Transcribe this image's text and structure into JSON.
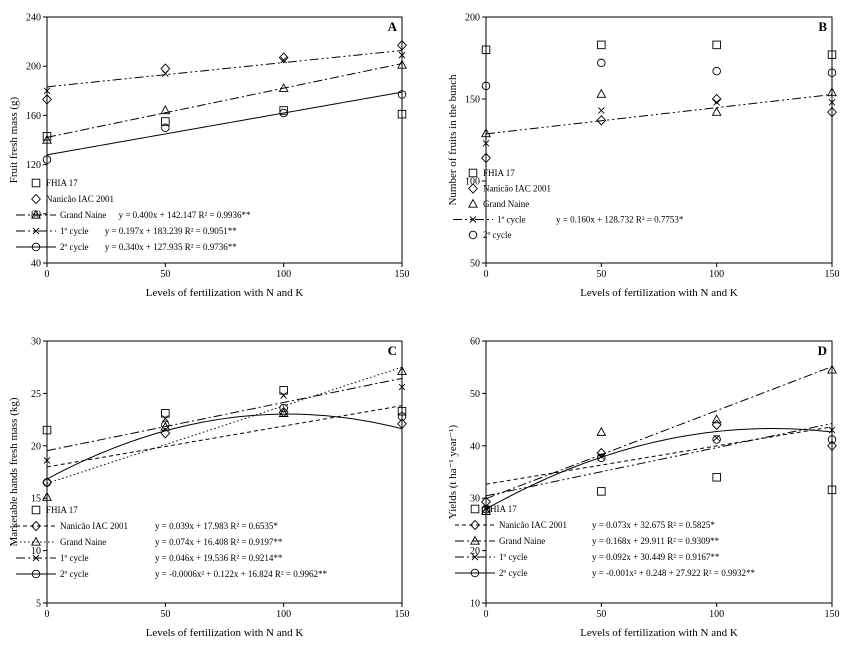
{
  "chart_data": [
    {
      "panel": "A",
      "type": "scatter",
      "xlabel": "Levels of fertilization with N and K",
      "ylabel": "Fruit fresh mass  (g)",
      "xlim": [
        0,
        150
      ],
      "ylim": [
        40,
        240
      ],
      "xticks": [
        0,
        50,
        100,
        150
      ],
      "yticks": [
        40,
        80,
        120,
        160,
        200,
        240
      ],
      "series": [
        {
          "name": "FHIA 17",
          "marker": "square",
          "x": [
            0,
            50,
            100,
            150
          ],
          "y": [
            143,
            155,
            164,
            161
          ]
        },
        {
          "name": "Nanicão IAC 2001",
          "marker": "diamond",
          "x": [
            0,
            50,
            100,
            150
          ],
          "y": [
            173,
            198,
            207,
            217
          ]
        },
        {
          "name": "Grand Naine",
          "marker": "triangle",
          "x": [
            0,
            50,
            100,
            150
          ],
          "y": [
            140,
            164,
            182,
            201
          ],
          "equation": "y = 0.400x + 142.147   R² = 0.9936**",
          "fit": {
            "a": 0.4,
            "b": 142.147
          },
          "line": "dashdot"
        },
        {
          "name": "1º cycle",
          "marker": "x",
          "x": [
            0,
            50,
            100,
            150
          ],
          "y": [
            180,
            194,
            205,
            209
          ],
          "equation": "y = 0.197x + 183.239   R² = 0.9051**",
          "fit": {
            "a": 0.197,
            "b": 183.239
          },
          "line": "dashdotdot"
        },
        {
          "name": "2º cycle",
          "marker": "circle",
          "x": [
            0,
            50,
            100,
            150
          ],
          "y": [
            124,
            150,
            162,
            177
          ],
          "equation": "y = 0.340x + 127.935   R² = 0.9736**",
          "fit": {
            "a": 0.34,
            "b": 127.935
          },
          "line": "solid"
        }
      ]
    },
    {
      "panel": "B",
      "type": "scatter",
      "xlabel": "Levels of fertilization with N and K",
      "ylabel": "Number of fruits in the bunch",
      "xlim": [
        0,
        150
      ],
      "ylim": [
        50,
        200
      ],
      "xticks": [
        0,
        50,
        100,
        150
      ],
      "yticks": [
        50,
        100,
        150,
        200
      ],
      "series": [
        {
          "name": "FHIA 17",
          "marker": "square",
          "x": [
            0,
            50,
            100,
            150
          ],
          "y": [
            180,
            183,
            183,
            177
          ]
        },
        {
          "name": "Nanicão IAC 2001",
          "marker": "diamond",
          "x": [
            0,
            50,
            100,
            150
          ],
          "y": [
            114,
            137,
            150,
            142
          ]
        },
        {
          "name": "Grand Naine",
          "marker": "triangle",
          "x": [
            0,
            50,
            100,
            150
          ],
          "y": [
            129,
            153,
            142,
            154
          ]
        },
        {
          "name": "1º cycle",
          "marker": "x",
          "x": [
            0,
            50,
            100,
            150
          ],
          "y": [
            123,
            143,
            148,
            148
          ],
          "equation": "y = 0.160x + 128.732   R² = 0.7753*",
          "fit": {
            "a": 0.16,
            "b": 128.732
          },
          "line": "dashdotdot"
        },
        {
          "name": "2º cycle",
          "marker": "circle",
          "x": [
            0,
            50,
            100,
            150
          ],
          "y": [
            158,
            172,
            167,
            166
          ]
        }
      ]
    },
    {
      "panel": "C",
      "type": "scatter",
      "xlabel": "Levels of fertilization with N and K",
      "ylabel": "Marketable hands fresh mass (kg)",
      "xlim": [
        0,
        150
      ],
      "ylim": [
        5,
        30
      ],
      "xticks": [
        0,
        50,
        100,
        150
      ],
      "yticks": [
        5,
        10,
        15,
        20,
        25,
        30
      ],
      "series": [
        {
          "name": "FHIA 17",
          "marker": "square",
          "x": [
            0,
            50,
            100,
            150
          ],
          "y": [
            21.5,
            23.1,
            25.3,
            23.3
          ]
        },
        {
          "name": "Nanicão IAC 2001",
          "marker": "diamond",
          "x": [
            0,
            50,
            100,
            150
          ],
          "y": [
            16.5,
            21.2,
            23.2,
            22.1
          ],
          "equation": "y = 0.039x + 17.983   R² = 0.6535*",
          "fit": {
            "a": 0.039,
            "b": 17.983
          },
          "line": "dashed"
        },
        {
          "name": "Grand Naine",
          "marker": "triangle",
          "x": [
            0,
            50,
            100,
            150
          ],
          "y": [
            15.1,
            21.8,
            23.1,
            27.1
          ],
          "equation": "y = 0.074x + 16.408   R² = 0.9197**",
          "fit": {
            "a": 0.074,
            "b": 16.408
          },
          "line": "dotted"
        },
        {
          "name": "1º cycle",
          "marker": "x",
          "x": [
            0,
            50,
            100,
            150
          ],
          "y": [
            18.6,
            22.6,
            24.8,
            25.6
          ],
          "equation": "y = 0.046x + 19.536   R² = 0.9214**",
          "fit": {
            "a": 0.046,
            "b": 19.536
          },
          "line": "dashdot"
        },
        {
          "name": "2º cycle",
          "marker": "circle",
          "x": [
            0,
            50,
            100,
            150
          ],
          "y": [
            16.5,
            22.0,
            23.6,
            22.8
          ],
          "equation": "y = -0.0006x² + 0.122x + 16.824   R² = 0.9962**",
          "fit": {
            "c2": -0.0006,
            "a": 0.122,
            "b": 16.824
          },
          "line": "solid"
        }
      ]
    },
    {
      "panel": "D",
      "type": "scatter",
      "xlabel": "Levels of fertilization with N and K",
      "ylabel": "Yields (t ha⁻¹ year⁻¹)",
      "xlim": [
        0,
        150
      ],
      "ylim": [
        10,
        60
      ],
      "xticks": [
        0,
        50,
        100,
        150
      ],
      "yticks": [
        10,
        20,
        30,
        40,
        50,
        60
      ],
      "series": [
        {
          "name": "FHIA 17",
          "marker": "square",
          "x": [
            0,
            50,
            100,
            150
          ],
          "y": [
            27.6,
            31.3,
            34.0,
            31.6
          ]
        },
        {
          "name": "Nanicão IAC 2001",
          "marker": "diamond",
          "x": [
            0,
            50,
            100,
            150
          ],
          "y": [
            29.3,
            38.6,
            44.0,
            40.0
          ],
          "equation": "y = 0.073x + 32.675   R² = 0.5825*",
          "fit": {
            "a": 0.073,
            "b": 32.675
          },
          "line": "dashed"
        },
        {
          "name": "Grand Naine",
          "marker": "triangle",
          "x": [
            0,
            50,
            100,
            150
          ],
          "y": [
            27.5,
            42.6,
            45.0,
            54.5
          ],
          "equation": "y = 0.168x + 29.911   R² = 0.9309**",
          "fit": {
            "a": 0.168,
            "b": 29.911
          },
          "line": "dashdot"
        },
        {
          "name": "1º cycle",
          "marker": "x",
          "x": [
            0,
            50,
            100,
            150
          ],
          "y": [
            28.0,
            38.0,
            41.5,
            43.0
          ],
          "equation": "y = 0.092x + 30.449   R² = 0.9167**",
          "fit": {
            "a": 0.092,
            "b": 30.449
          },
          "line": "dashdotdot"
        },
        {
          "name": "2º cycle",
          "marker": "circle",
          "x": [
            0,
            50,
            100,
            150
          ],
          "y": [
            27.9,
            37.7,
            41.2,
            41.2
          ],
          "equation": "y = -0.001x² + 0.248 + 27.922   R² = 0.9932**",
          "fit": {
            "c2": -0.001,
            "a": 0.248,
            "b": 27.922
          },
          "line": "solid"
        }
      ]
    }
  ]
}
